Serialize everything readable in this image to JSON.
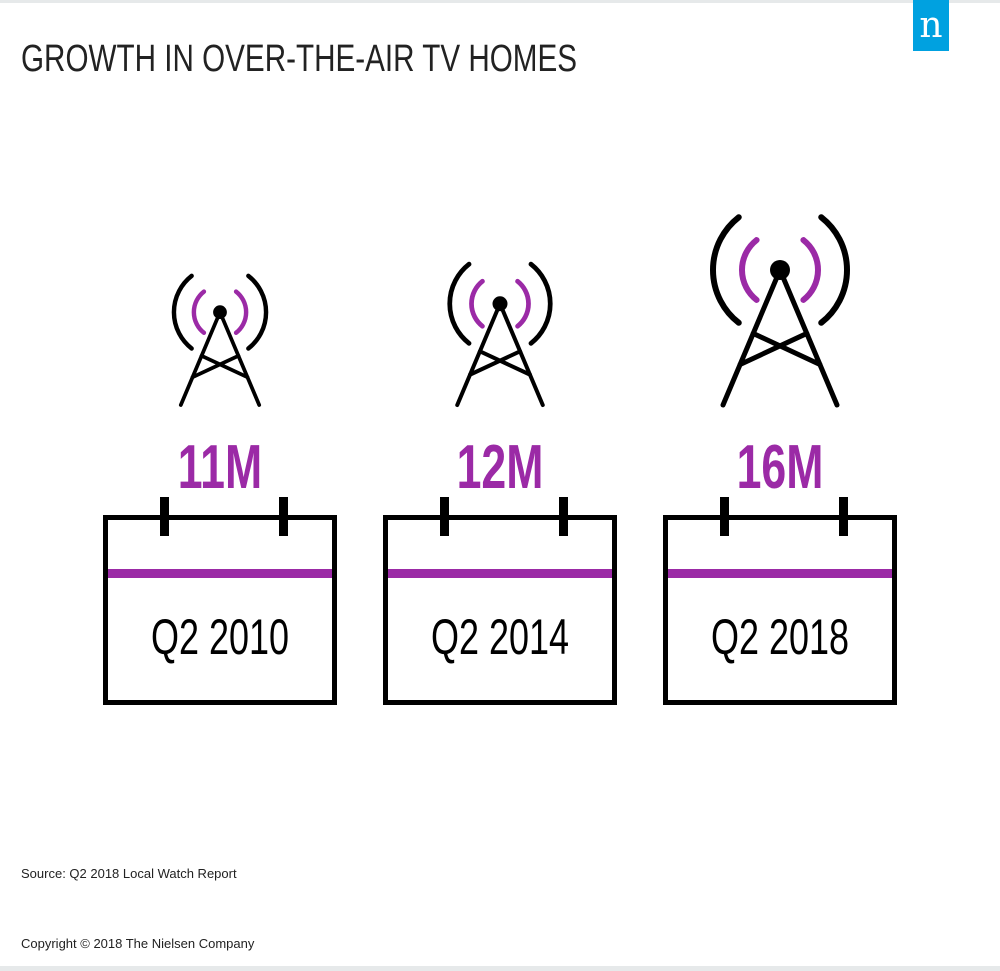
{
  "title": "GROWTH IN OVER-THE-AIR TV HOMES",
  "logo_letter": "n",
  "source": "Source: Q2 2018 Local Watch Report",
  "copyright": "Copyright © 2018 The Nielsen Company",
  "colors": {
    "accent": "#9b2aa6",
    "ink": "#000000",
    "brand": "#00a1e0"
  },
  "icons": [
    "broadcast-tower-icon",
    "calendar-icon"
  ],
  "chart_data": {
    "type": "bar",
    "categories": [
      "Q2 2010",
      "Q2 2014",
      "Q2 2018"
    ],
    "values": [
      11,
      12,
      16
    ],
    "value_labels": [
      "11M",
      "12M",
      "16M"
    ],
    "unit": "M"
  }
}
